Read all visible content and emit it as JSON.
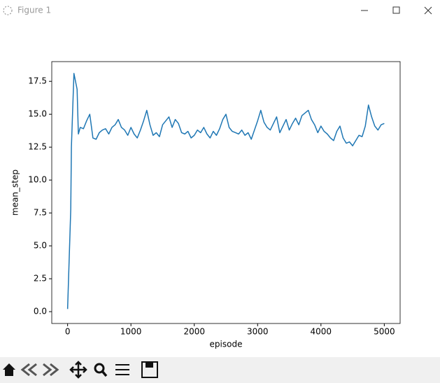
{
  "window": {
    "title": "Figure 1"
  },
  "chart_data": {
    "type": "line",
    "xlabel": "episode",
    "ylabel": "mean_step",
    "color": "#1f77b4",
    "x": [
      0,
      50,
      60,
      100,
      150,
      170,
      200,
      250,
      300,
      350,
      400,
      450,
      500,
      550,
      600,
      650,
      700,
      750,
      800,
      850,
      900,
      950,
      1000,
      1050,
      1100,
      1150,
      1200,
      1250,
      1300,
      1350,
      1400,
      1450,
      1500,
      1550,
      1600,
      1650,
      1700,
      1750,
      1800,
      1850,
      1900,
      1950,
      2000,
      2050,
      2100,
      2150,
      2200,
      2250,
      2300,
      2350,
      2400,
      2450,
      2500,
      2550,
      2600,
      2650,
      2700,
      2750,
      2800,
      2850,
      2900,
      2950,
      3000,
      3050,
      3100,
      3150,
      3200,
      3250,
      3300,
      3350,
      3400,
      3450,
      3500,
      3550,
      3600,
      3650,
      3700,
      3750,
      3800,
      3850,
      3900,
      3950,
      4000,
      4050,
      4100,
      4150,
      4200,
      4250,
      4300,
      4350,
      4400,
      4450,
      4500,
      4550,
      4600,
      4650,
      4700,
      4750,
      4800,
      4850,
      4900,
      4950,
      5000
    ],
    "values": [
      0.2,
      7.8,
      12.5,
      18.1,
      16.9,
      13.5,
      14.0,
      13.9,
      14.5,
      15.0,
      13.2,
      13.1,
      13.6,
      13.8,
      13.9,
      13.5,
      14.0,
      14.2,
      14.6,
      14.0,
      13.8,
      13.4,
      14.0,
      13.5,
      13.2,
      13.8,
      14.5,
      15.3,
      14.2,
      13.4,
      13.6,
      13.3,
      14.2,
      14.5,
      14.8,
      14.0,
      14.6,
      14.3,
      13.6,
      13.5,
      13.7,
      13.2,
      13.4,
      13.8,
      13.6,
      14.0,
      13.5,
      13.2,
      13.7,
      13.4,
      13.9,
      14.6,
      15.0,
      14.0,
      13.7,
      13.6,
      13.5,
      13.8,
      13.4,
      13.6,
      13.1,
      13.8,
      14.5,
      15.3,
      14.4,
      14.0,
      13.8,
      14.3,
      14.8,
      13.6,
      14.1,
      14.6,
      13.8,
      14.3,
      14.7,
      14.2,
      14.9,
      15.1,
      15.3,
      14.6,
      14.2,
      13.6,
      14.1,
      13.7,
      13.5,
      13.2,
      13.0,
      13.7,
      14.1,
      13.2,
      12.8,
      12.9,
      12.6,
      13.0,
      13.4,
      13.3,
      14.1,
      15.7,
      14.8,
      14.1,
      13.8,
      14.2,
      14.3
    ],
    "xlim": [
      -250,
      5250
    ],
    "xticks": [
      0,
      1000,
      2000,
      3000,
      4000,
      5000
    ],
    "ylim": [
      -0.9,
      19.0
    ],
    "yticks": [
      {
        "value": 0,
        "label": "0.0"
      },
      2.5,
      {
        "value": 5,
        "label": "5.0"
      },
      7.5,
      {
        "value": 10,
        "label": "10.0"
      },
      12.5,
      {
        "value": 15,
        "label": "15.0"
      },
      17.5
    ]
  }
}
